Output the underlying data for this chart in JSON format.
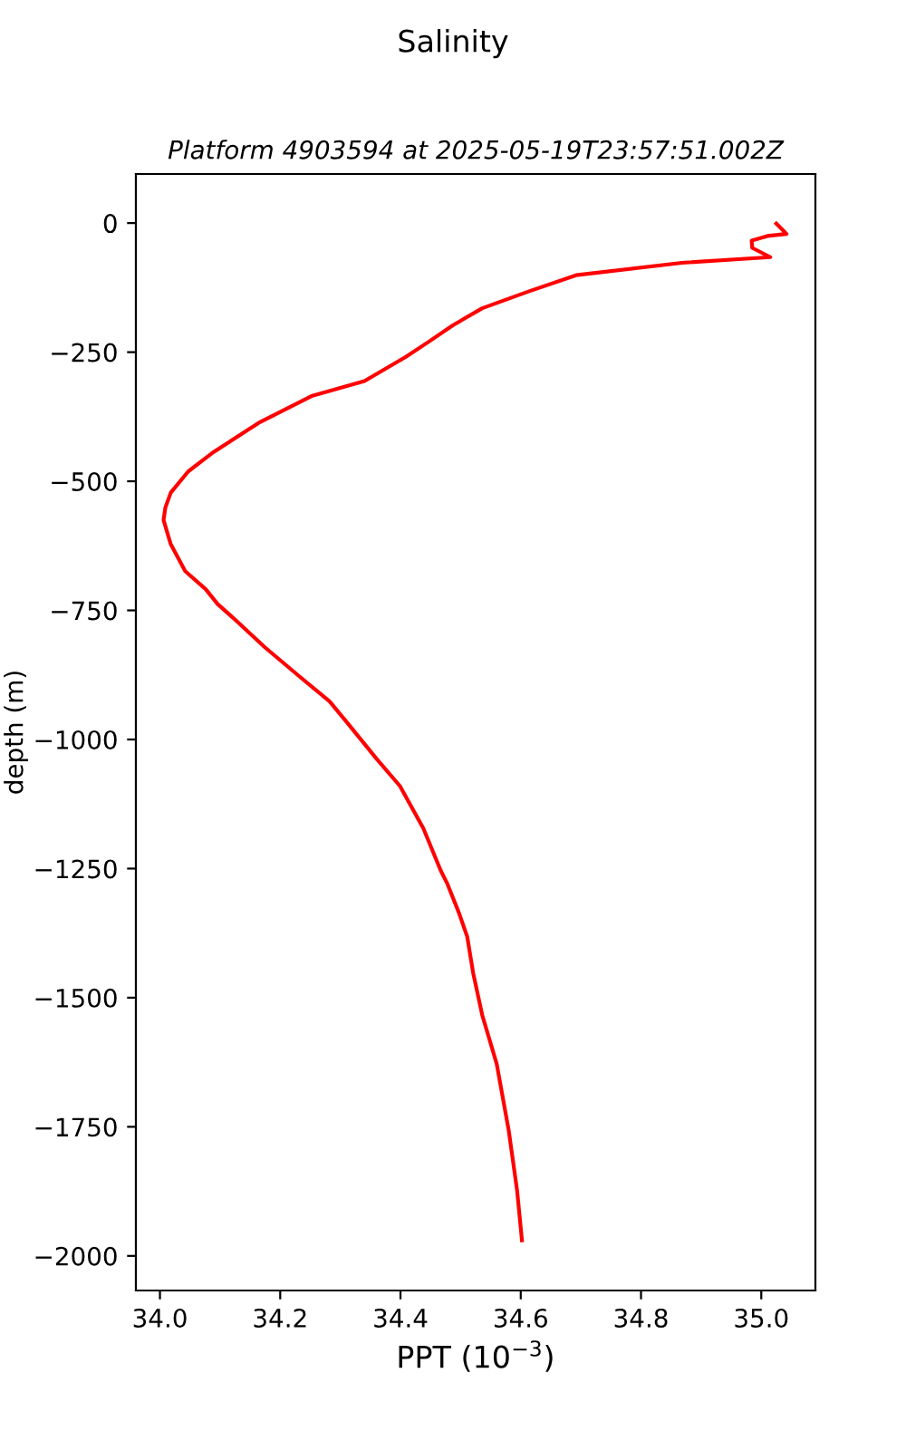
{
  "chart_data": {
    "type": "line",
    "title": "Salinity",
    "subtitle": "Platform 4903594 at 2025-05-19T23:57:51.002Z",
    "xlabel": "PPT (10$^{−3}$)",
    "ylabel": "depth (m)",
    "series": [
      {
        "color": "#ff0000",
        "x": [
          35.025,
          35.042,
          35.01,
          34.984,
          34.985,
          35.015,
          34.868,
          34.692,
          34.614,
          34.536,
          34.487,
          34.448,
          34.409,
          34.34,
          34.252,
          34.164,
          34.086,
          34.047,
          34.018,
          34.009,
          34.006,
          34.018,
          34.042,
          34.076,
          34.096,
          34.125,
          34.174,
          34.233,
          34.282,
          34.311,
          34.36,
          34.399,
          34.438,
          34.467,
          34.477,
          34.497,
          34.511,
          34.521,
          34.536,
          34.56,
          34.58,
          34.594,
          34.602
        ],
        "values": [
          -1,
          -21,
          -25,
          -34,
          -48,
          -66,
          -77,
          -101,
          -132,
          -165,
          -198,
          -229,
          -259,
          -306,
          -335,
          -387,
          -446,
          -481,
          -522,
          -551,
          -575,
          -622,
          -674,
          -709,
          -738,
          -768,
          -821,
          -879,
          -926,
          -967,
          -1037,
          -1090,
          -1172,
          -1254,
          -1277,
          -1335,
          -1382,
          -1453,
          -1534,
          -1628,
          -1757,
          -1874,
          -1970
        ]
      }
    ],
    "xlim": [
      33.96,
      35.09
    ],
    "ylim": [
      -2067,
      95
    ],
    "xticks": [
      {
        "value": 34.0,
        "label": "34.0"
      },
      {
        "value": 34.2,
        "label": "34.2"
      },
      {
        "value": 34.4,
        "label": "34.4"
      },
      {
        "value": 34.6,
        "label": "34.6"
      },
      {
        "value": 34.8,
        "label": "34.8"
      },
      {
        "value": 35.0,
        "label": "35.0"
      }
    ],
    "yticks": [
      {
        "value": 0,
        "label": "0"
      },
      {
        "value": -250,
        "label": "−250"
      },
      {
        "value": -500,
        "label": "−500"
      },
      {
        "value": -750,
        "label": "−750"
      },
      {
        "value": -1000,
        "label": "−1000"
      },
      {
        "value": -1250,
        "label": "−1250"
      },
      {
        "value": -1500,
        "label": "−1500"
      },
      {
        "value": -1750,
        "label": "−1750"
      },
      {
        "value": -2000,
        "label": "−2000"
      }
    ],
    "grid": false,
    "legend": false,
    "marker": "none",
    "line_style": "solid"
  }
}
